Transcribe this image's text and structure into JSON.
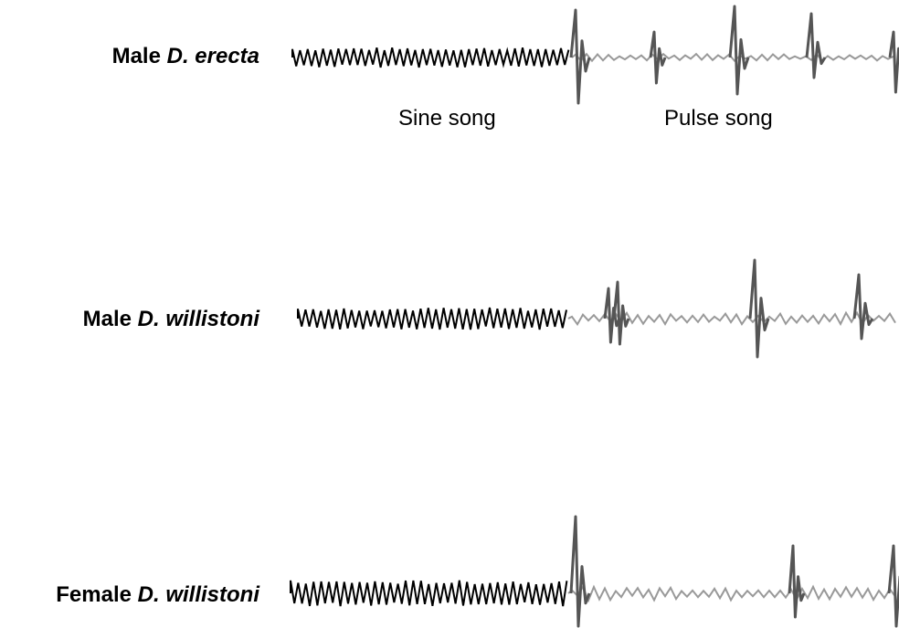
{
  "rows": [
    {
      "sex": "Male",
      "species": "D. erecta"
    },
    {
      "sex": "Male",
      "species": "D. willistoni"
    },
    {
      "sex": "Female",
      "species": "D. willistoni"
    }
  ],
  "segment_labels": {
    "sine": "Sine song",
    "pulse": "Pulse song"
  },
  "colors": {
    "sine_trace": "#000000",
    "pulse_trace": "#999999",
    "pulse_spike": "#555555"
  }
}
